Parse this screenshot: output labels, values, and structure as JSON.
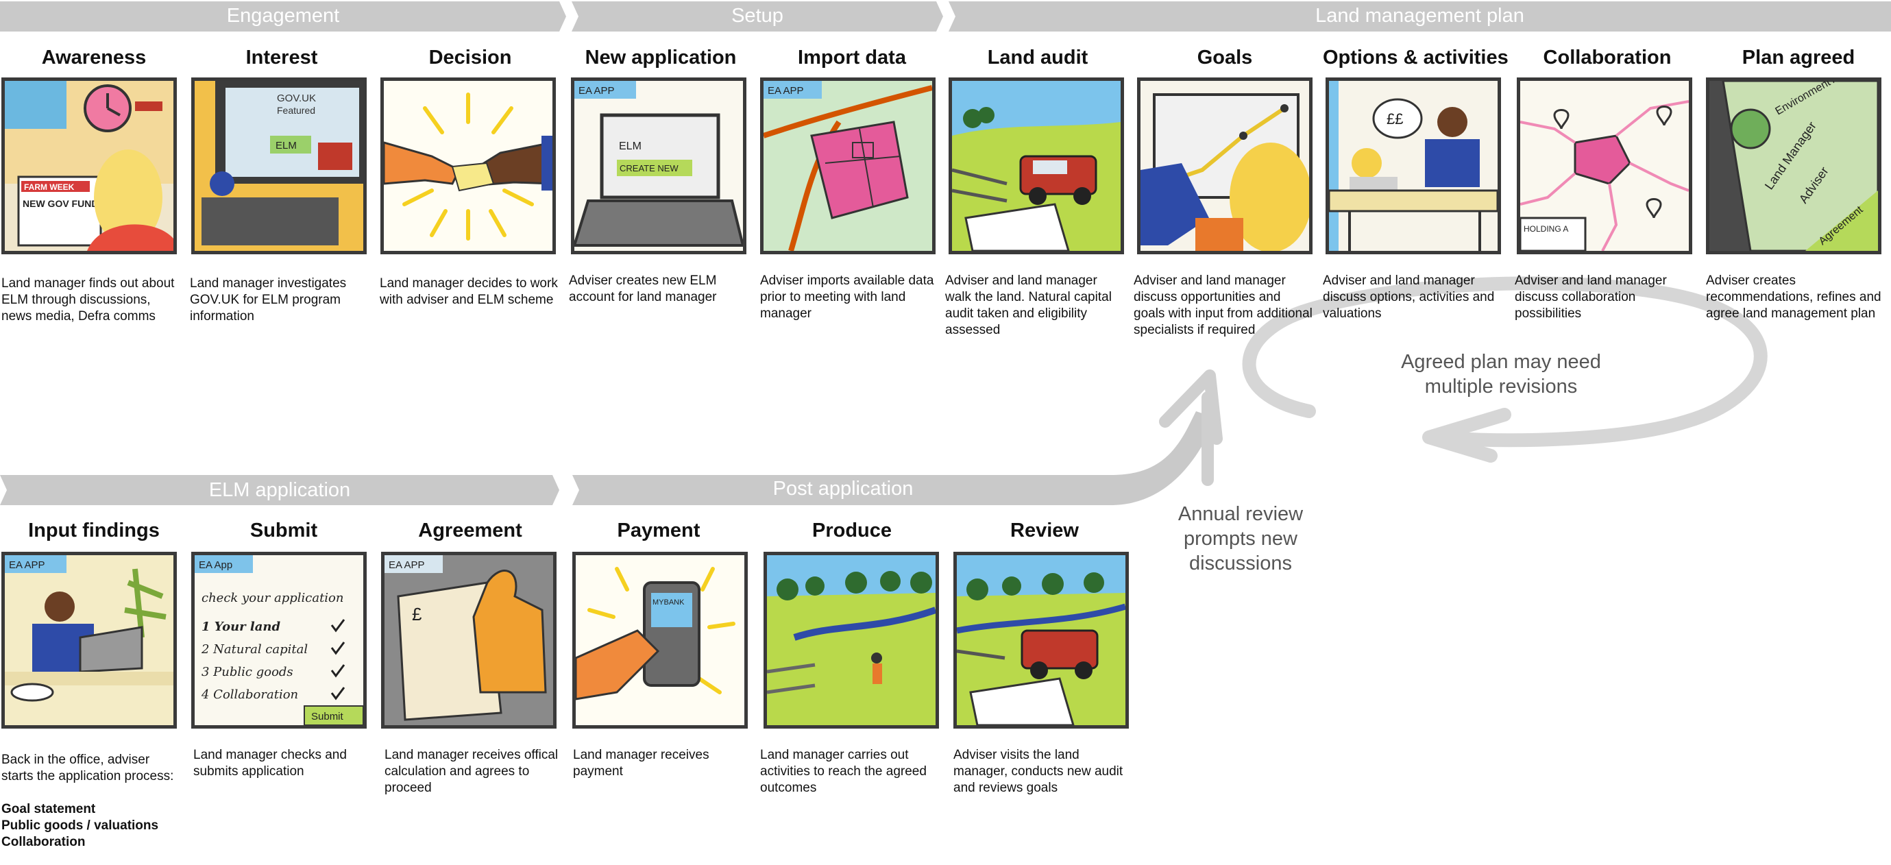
{
  "phases": {
    "engagement": "Engagement",
    "setup": "Setup",
    "land_management_plan": "Land management plan",
    "elm_application": "ELM application",
    "post_application": "Post application"
  },
  "row1": [
    {
      "title": "Awareness",
      "desc": "Land manager finds out about ELM through discussions, news media, Defra comms",
      "art": [
        "FARM WEEK",
        "NEW GOV FUNDING"
      ]
    },
    {
      "title": "Interest",
      "desc": "Land manager investigates GOV.UK for ELM program information",
      "art": [
        "GOV.UK",
        "Featured",
        "ELM"
      ]
    },
    {
      "title": "Decision",
      "desc": "Land manager decides to work with adviser and ELM scheme",
      "art": []
    },
    {
      "title": "New application",
      "desc": "Adviser creates new ELM account for land manager",
      "art": [
        "EA APP",
        "ELM",
        "CREATE NEW"
      ]
    },
    {
      "title": "Import data",
      "desc": "Adviser imports available data prior to meeting with land manager",
      "art": [
        "EA APP"
      ]
    },
    {
      "title": "Land audit",
      "desc": "Adviser and land manager walk the land. Natural capital audit taken and eligibility assessed",
      "art": []
    },
    {
      "title": "Goals",
      "desc": "Adviser and land manager discuss opportunities and goals with input from additional specialists if required",
      "art": []
    },
    {
      "title": "Options & activities",
      "desc": "Adviser and land manager discuss options, activities and valuations",
      "art": [
        "££"
      ]
    },
    {
      "title": "Collaboration",
      "desc": "Adviser and land manager discuss collaboration possibilities",
      "art": [
        "HOLDING A"
      ]
    },
    {
      "title": "Plan agreed",
      "desc": "Adviser creates recommendations, refines and agree land management plan",
      "art": [
        "Environment Agency",
        "Land Manager",
        "Adviser",
        "Agreement"
      ]
    }
  ],
  "row2": [
    {
      "title": "Input findings",
      "desc": "Back in the office, adviser starts the application process:",
      "bold_items": [
        "Goal statement",
        "Public goods / valuations",
        "Collaboration"
      ],
      "art": [
        "EA APP"
      ]
    },
    {
      "title": "Submit",
      "desc": "Land manager checks and submits application",
      "art": [
        "EA App",
        "check your application",
        "1 Your land",
        "2 Natural capital",
        "3 Public goods",
        "4 Collaboration",
        "Submit"
      ]
    },
    {
      "title": "Agreement",
      "desc": "Land manager receives offical calculation and agrees to proceed",
      "art": [
        "EA APP",
        "£"
      ]
    },
    {
      "title": "Payment",
      "desc": "Land manager receives payment",
      "art": [
        "MYBANK"
      ]
    },
    {
      "title": "Produce",
      "desc": "Land manager carries out activities to reach the agreed outcomes",
      "art": []
    },
    {
      "title": "Review",
      "desc": "Adviser visits the land manager, conducts new audit and reviews goals",
      "art": []
    }
  ],
  "notes": {
    "revision": "Agreed plan may need multiple revisions",
    "annual_review": "Annual review prompts new discussions"
  }
}
